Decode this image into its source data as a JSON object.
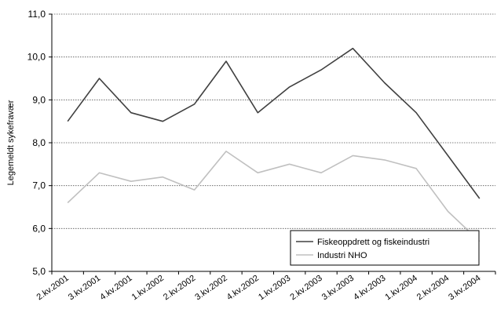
{
  "chart_data": {
    "type": "line",
    "categories": [
      "2.kv.2001",
      "3.kv.2001",
      "4.kv.2001",
      "1.kv.2002",
      "2.kv.2002",
      "3.kv.2002",
      "4.kv.2002",
      "1.kv.2003",
      "2.kv.2003",
      "3.kv.2003",
      "4.kv.2003",
      "1.kv.2004",
      "2.kv.2004",
      "3.kv.2004"
    ],
    "series": [
      {
        "name": "Fiskeoppdrett og fiskeindustri",
        "color": "#404040",
        "values": [
          8.5,
          9.5,
          8.7,
          8.5,
          8.9,
          9.9,
          8.7,
          9.3,
          9.7,
          10.2,
          9.4,
          8.7,
          7.7,
          6.7
        ]
      },
      {
        "name": "Industri NHO",
        "color": "#c0c0c0",
        "values": [
          6.6,
          7.3,
          7.1,
          7.2,
          6.9,
          7.8,
          7.3,
          7.5,
          7.3,
          7.7,
          7.6,
          7.4,
          6.4,
          5.7
        ]
      }
    ],
    "ylabel": "Legemeldt sykefravær",
    "ylim": [
      5.0,
      11.0
    ],
    "yticks": [
      "5,0",
      "6,0",
      "7,0",
      "8,0",
      "9,0",
      "10,0",
      "11,0"
    ],
    "grid": true,
    "legend": "bottom-right"
  }
}
